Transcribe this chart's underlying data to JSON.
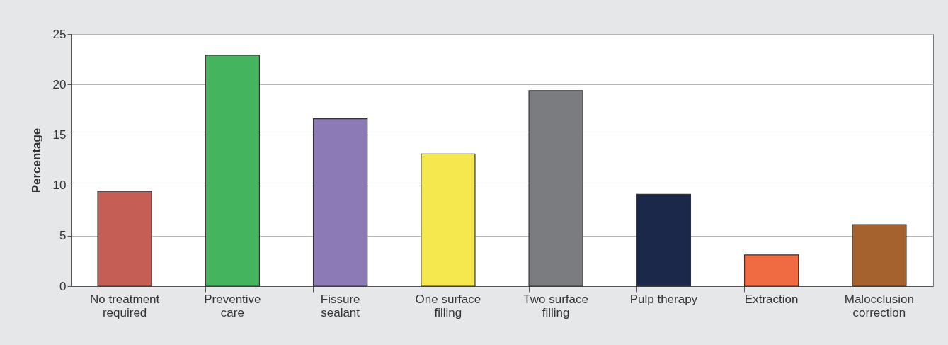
{
  "chart_data": {
    "type": "bar",
    "ylabel": "Percentage",
    "categories": [
      "No treatment required",
      "Preventive care",
      "Fissure sealant",
      "One surface filling",
      "Two surface filling",
      "Pulp therapy",
      "Extraction",
      "Malocclusion correction"
    ],
    "values": [
      9.4,
      22.9,
      16.6,
      13.1,
      19.4,
      9.1,
      3.1,
      6.1
    ],
    "colors": [
      "#c55f56",
      "#45b45f",
      "#8c7ab6",
      "#f4e84e",
      "#7b7c80",
      "#1b284a",
      "#f06b42",
      "#a6622e"
    ],
    "ylim": [
      0,
      25
    ],
    "yticks": [
      0,
      5,
      10,
      15,
      20,
      25
    ],
    "grid": "y"
  }
}
